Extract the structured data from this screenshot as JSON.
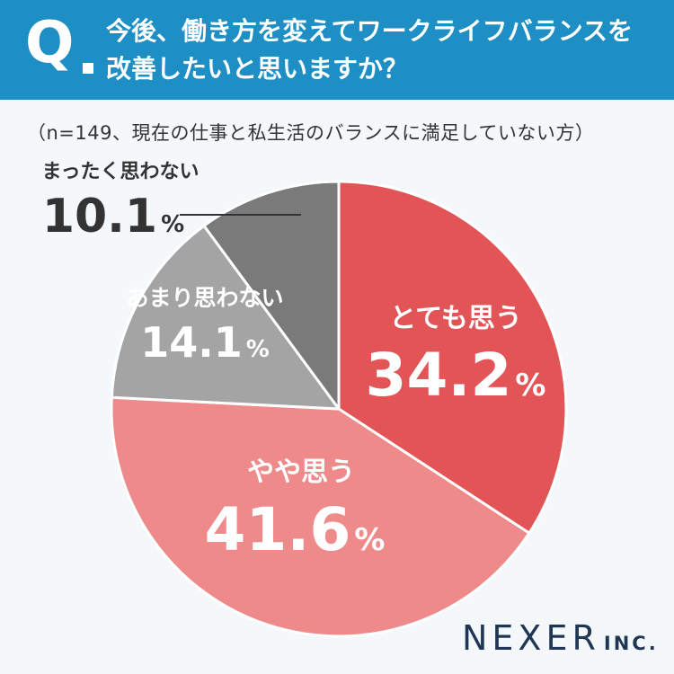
{
  "header": {
    "q_label": "Q",
    "question_line1": "今後、働き方を変えてワークライフバランスを",
    "question_line2": "改善したいと思いますか？"
  },
  "note": "（n=149、現在の仕事と私生活のバランスに満足していない方）",
  "brand": {
    "name": "NEXER",
    "suffix": "INC."
  },
  "chart_data": {
    "type": "pie",
    "start": "12 o'clock",
    "direction": "clockwise",
    "unit": "%",
    "slices": [
      {
        "label": "とても思う",
        "value": 34.2,
        "color": "#e35457",
        "text_color": "#ffffff"
      },
      {
        "label": "やや思う",
        "value": 41.6,
        "color": "#ef8a8b",
        "text_color": "#ffffff"
      },
      {
        "label": "あまり思わない",
        "value": 14.1,
        "color": "#a4a4a4",
        "text_color": "#ffffff"
      },
      {
        "label": "まったく思わない",
        "value": 10.1,
        "color": "#7a7a7a",
        "text_color": "#333333"
      }
    ]
  }
}
